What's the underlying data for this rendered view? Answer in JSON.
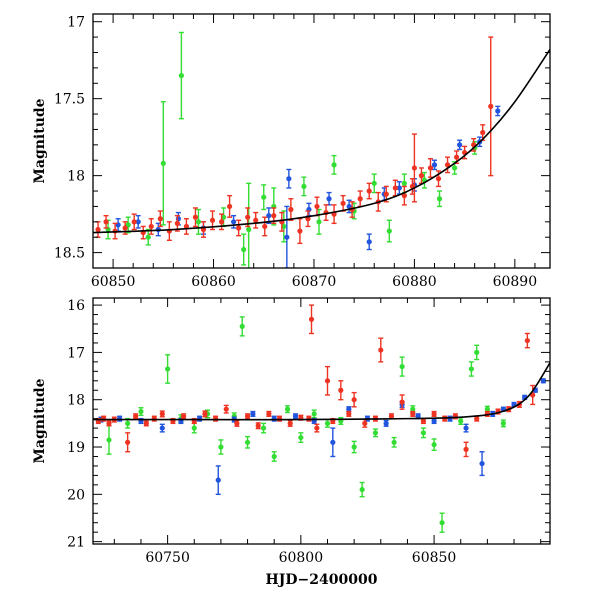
{
  "chart_data": [
    {
      "type": "scatter",
      "title": "",
      "xlabel": "",
      "ylabel": "Magnitude",
      "xlim": [
        60848,
        60893.5
      ],
      "ylim": [
        18.6,
        16.95
      ],
      "y_inverted": true,
      "xticks": [
        60850,
        60860,
        60870,
        60880,
        60890
      ],
      "xtick_labels": [
        "60850",
        "60860",
        "60870",
        "60880",
        "60890"
      ],
      "yticks": [
        17,
        17.5,
        18,
        18.5
      ],
      "ytick_labels": [
        "17",
        "17.5",
        "18",
        "18.5"
      ],
      "grid": false,
      "legend": "none",
      "fit_curve": {
        "type": "polynomial-approx",
        "color": "#000000",
        "x": [
          60848,
          60856,
          60864,
          60870,
          60876,
          60880,
          60884,
          60887,
          60890,
          60893.5
        ],
        "y": [
          18.37,
          18.35,
          18.31,
          18.26,
          18.18,
          18.08,
          17.92,
          17.75,
          17.52,
          17.18
        ]
      },
      "series": [
        {
          "color": "#33dd33",
          "x": [
            60849.5,
            60851.5,
            60853.5,
            60855,
            60856.8,
            60858.5,
            60861,
            60863,
            60865,
            60867,
            60869,
            60870.5,
            60872,
            60874,
            60876,
            60877.5,
            60879,
            60881,
            60882.5,
            60884,
            60886,
            60863.5,
            60866
          ],
          "y": [
            18.35,
            18.32,
            18.4,
            17.92,
            17.35,
            18.3,
            18.27,
            18.48,
            18.14,
            18.33,
            18.07,
            18.3,
            17.93,
            18.23,
            18.05,
            18.36,
            18.05,
            18.03,
            18.15,
            17.95,
            17.82,
            18.35,
            18.2
          ],
          "err": [
            0.06,
            0.05,
            0.05,
            0.4,
            0.28,
            0.08,
            0.06,
            0.1,
            0.08,
            0.1,
            0.06,
            0.08,
            0.06,
            0.05,
            0.06,
            0.07,
            0.06,
            0.05,
            0.05,
            0.04,
            0.04,
            0.3,
            0.12
          ]
        },
        {
          "color": "#2255dd",
          "x": [
            60850.5,
            60852.5,
            60854.5,
            60856.5,
            60859,
            60862,
            60865.5,
            60867.5,
            60869.5,
            60871.5,
            60873.5,
            60875.5,
            60877,
            60878.5,
            60880,
            60882,
            60884.5,
            60886.5,
            60888.3,
            60867.3
          ],
          "y": [
            18.32,
            18.3,
            18.35,
            18.28,
            18.34,
            18.3,
            18.26,
            18.02,
            18.22,
            18.15,
            18.2,
            18.43,
            18.12,
            18.08,
            18.06,
            17.93,
            17.8,
            17.78,
            17.58,
            18.4
          ],
          "err": [
            0.04,
            0.04,
            0.04,
            0.04,
            0.04,
            0.04,
            0.05,
            0.06,
            0.04,
            0.04,
            0.04,
            0.05,
            0.04,
            0.04,
            0.04,
            0.03,
            0.03,
            0.03,
            0.03,
            0.2
          ]
        },
        {
          "color": "#ee3322",
          "x": [
            60848.5,
            60849.3,
            60850.2,
            60851.2,
            60852.1,
            60853,
            60853.8,
            60854.7,
            60855.6,
            60856.4,
            60857.3,
            60858.2,
            60859,
            60859.9,
            60860.8,
            60861.6,
            60862.5,
            60863.4,
            60864.2,
            60865.1,
            60866,
            60866.8,
            60867.7,
            60868.6,
            60869.4,
            60870.3,
            60871.2,
            60872,
            60872.9,
            60873.8,
            60874.6,
            60875.5,
            60876.4,
            60877.2,
            60878.1,
            60879,
            60879.8,
            60880.7,
            60881.6,
            60882.4,
            60883.3,
            60884.2,
            60885,
            60885.9,
            60886.8,
            60887.6,
            60880
          ],
          "y": [
            18.35,
            18.3,
            18.36,
            18.34,
            18.3,
            18.37,
            18.33,
            18.28,
            18.36,
            18.31,
            18.33,
            18.27,
            18.35,
            18.29,
            18.3,
            18.2,
            18.34,
            18.27,
            18.29,
            18.33,
            18.26,
            18.3,
            18.22,
            18.36,
            18.28,
            18.2,
            18.24,
            18.25,
            18.18,
            18.22,
            18.15,
            18.1,
            18.17,
            18.12,
            18.08,
            18.13,
            18.07,
            18.0,
            17.95,
            18.02,
            17.93,
            17.88,
            17.85,
            17.8,
            17.72,
            17.55,
            17.95
          ],
          "err": [
            0.05,
            0.04,
            0.05,
            0.04,
            0.05,
            0.04,
            0.05,
            0.05,
            0.06,
            0.05,
            0.05,
            0.06,
            0.05,
            0.06,
            0.05,
            0.07,
            0.05,
            0.06,
            0.05,
            0.06,
            0.05,
            0.06,
            0.07,
            0.08,
            0.05,
            0.06,
            0.05,
            0.06,
            0.05,
            0.05,
            0.05,
            0.05,
            0.06,
            0.05,
            0.05,
            0.06,
            0.05,
            0.05,
            0.06,
            0.05,
            0.05,
            0.04,
            0.04,
            0.04,
            0.05,
            0.45,
            0.22
          ]
        }
      ]
    },
    {
      "type": "scatter",
      "title": "",
      "xlabel": "HJD−2400000",
      "ylabel": "Magnitude",
      "xlim": [
        60722,
        60893.5
      ],
      "ylim": [
        21.05,
        15.85
      ],
      "y_inverted": true,
      "xticks": [
        60750,
        60800,
        60850
      ],
      "xtick_labels": [
        "60750",
        "60800",
        "60850"
      ],
      "yticks": [
        16,
        17,
        18,
        19,
        20,
        21
      ],
      "ytick_labels": [
        "16",
        "17",
        "18",
        "19",
        "20",
        "21"
      ],
      "grid": false,
      "legend": "none",
      "fit_curve": {
        "type": "polynomial-approx",
        "color": "#000000",
        "x": [
          60722,
          60760,
          60800,
          60840,
          60860,
          60875,
          60885,
          60893.5
        ],
        "y": [
          18.42,
          18.42,
          18.42,
          18.4,
          18.37,
          18.26,
          17.95,
          17.22
        ]
      },
      "series": [
        {
          "color": "#33dd33",
          "x": [
            60728,
            60735,
            60740,
            60750,
            60755,
            60760,
            60765,
            60770,
            60775,
            60778,
            60780,
            60786,
            60790,
            60795,
            60800,
            60805,
            60810,
            60815,
            60820,
            60823,
            60828,
            60835,
            60838,
            60842,
            60846,
            60850,
            60853,
            60860,
            60864,
            60866,
            60870,
            60876
          ],
          "y": [
            18.85,
            18.5,
            18.25,
            17.35,
            18.4,
            18.6,
            18.3,
            19.0,
            18.35,
            16.45,
            18.9,
            18.6,
            19.2,
            18.2,
            18.8,
            18.3,
            18.5,
            18.45,
            19.0,
            19.9,
            18.7,
            18.9,
            17.3,
            18.2,
            18.7,
            18.95,
            20.6,
            18.45,
            17.35,
            17.0,
            18.2,
            18.5
          ],
          "err": [
            0.3,
            0.1,
            0.08,
            0.3,
            0.08,
            0.1,
            0.08,
            0.15,
            0.07,
            0.2,
            0.12,
            0.1,
            0.1,
            0.07,
            0.1,
            0.08,
            0.08,
            0.07,
            0.12,
            0.15,
            0.08,
            0.1,
            0.2,
            0.07,
            0.1,
            0.12,
            0.2,
            0.07,
            0.15,
            0.15,
            0.06,
            0.07
          ]
        },
        {
          "color": "#2255dd",
          "x": [
            60725,
            60732,
            60740,
            60748,
            60755,
            60762,
            60769,
            60775,
            60782,
            60790,
            60798,
            60805,
            60812,
            60818,
            60825,
            60832,
            60838,
            60844,
            60850,
            60856,
            60862,
            60868,
            60872,
            60876,
            60880,
            60884,
            60888,
            60891
          ],
          "y": [
            18.42,
            18.4,
            18.45,
            18.6,
            18.45,
            18.4,
            19.7,
            18.42,
            18.3,
            18.4,
            18.35,
            18.45,
            18.9,
            18.2,
            18.4,
            18.5,
            18.1,
            18.35,
            18.45,
            18.4,
            18.6,
            19.35,
            18.3,
            18.2,
            18.1,
            17.95,
            17.8,
            17.6
          ],
          "err": [
            0.05,
            0.05,
            0.05,
            0.08,
            0.05,
            0.05,
            0.3,
            0.05,
            0.05,
            0.05,
            0.05,
            0.05,
            0.3,
            0.05,
            0.05,
            0.06,
            0.06,
            0.05,
            0.05,
            0.05,
            0.08,
            0.25,
            0.05,
            0.04,
            0.04,
            0.04,
            0.04,
            0.04
          ]
        },
        {
          "color": "#ee3322",
          "x": [
            60724,
            60726,
            60728,
            60730,
            60735,
            60738,
            60742,
            60745,
            60748,
            60752,
            60756,
            60760,
            60764,
            60768,
            60772,
            60776,
            60780,
            60784,
            60788,
            60792,
            60796,
            60800,
            60803,
            60804,
            60806,
            60810,
            60812,
            60815,
            60818,
            60820,
            60824,
            60828,
            60830,
            60834,
            60838,
            60842,
            60846,
            60850,
            60854,
            60858,
            60862,
            60866,
            60870,
            60874,
            60878,
            60882,
            60885,
            60887
          ],
          "y": [
            18.45,
            18.4,
            18.5,
            18.42,
            18.9,
            18.35,
            18.5,
            18.4,
            18.3,
            18.45,
            18.35,
            18.45,
            18.3,
            18.4,
            18.2,
            18.5,
            18.35,
            18.55,
            18.3,
            18.4,
            18.5,
            18.38,
            18.4,
            16.3,
            18.6,
            17.6,
            18.45,
            17.8,
            18.3,
            18.0,
            18.5,
            18.4,
            16.95,
            18.35,
            18.05,
            18.3,
            18.45,
            18.3,
            18.4,
            18.35,
            19.05,
            18.4,
            18.3,
            18.25,
            18.2,
            18.1,
            16.75,
            17.9
          ],
          "err": [
            0.05,
            0.05,
            0.05,
            0.05,
            0.2,
            0.05,
            0.05,
            0.05,
            0.06,
            0.05,
            0.05,
            0.05,
            0.06,
            0.05,
            0.08,
            0.06,
            0.05,
            0.06,
            0.05,
            0.05,
            0.06,
            0.05,
            0.05,
            0.3,
            0.08,
            0.3,
            0.05,
            0.2,
            0.05,
            0.15,
            0.08,
            0.05,
            0.25,
            0.05,
            0.15,
            0.05,
            0.05,
            0.05,
            0.05,
            0.05,
            0.15,
            0.05,
            0.05,
            0.05,
            0.05,
            0.06,
            0.15,
            0.2
          ]
        }
      ]
    }
  ]
}
